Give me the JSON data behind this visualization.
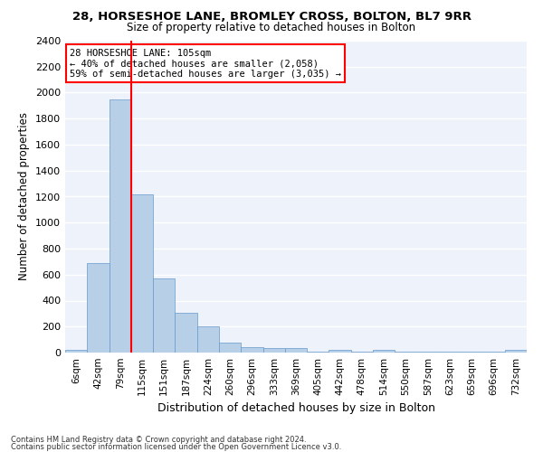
{
  "title": "28, HORSESHOE LANE, BROMLEY CROSS, BOLTON, BL7 9RR",
  "subtitle": "Size of property relative to detached houses in Bolton",
  "xlabel": "Distribution of detached houses by size in Bolton",
  "ylabel": "Number of detached properties",
  "bar_color": "#b8cfe8",
  "bar_edge_color": "#6699cc",
  "background_color": "#eef2fb",
  "grid_color": "#ffffff",
  "fig_background": "#ffffff",
  "categories": [
    "6sqm",
    "42sqm",
    "79sqm",
    "115sqm",
    "151sqm",
    "187sqm",
    "224sqm",
    "260sqm",
    "296sqm",
    "333sqm",
    "369sqm",
    "405sqm",
    "442sqm",
    "478sqm",
    "514sqm",
    "550sqm",
    "587sqm",
    "623sqm",
    "659sqm",
    "696sqm",
    "732sqm"
  ],
  "values": [
    20,
    690,
    1950,
    1220,
    570,
    305,
    200,
    80,
    45,
    35,
    35,
    5,
    20,
    5,
    20,
    5,
    5,
    5,
    5,
    5,
    20
  ],
  "ylim": [
    0,
    2400
  ],
  "yticks": [
    0,
    200,
    400,
    600,
    800,
    1000,
    1200,
    1400,
    1600,
    1800,
    2000,
    2200,
    2400
  ],
  "red_line_x": 2.5,
  "annotation_text_line1": "28 HORSESHOE LANE: 105sqm",
  "annotation_text_line2": "← 40% of detached houses are smaller (2,058)",
  "annotation_text_line3": "59% of semi-detached houses are larger (3,035) →",
  "footnote1": "Contains HM Land Registry data © Crown copyright and database right 2024.",
  "footnote2": "Contains public sector information licensed under the Open Government Licence v3.0."
}
